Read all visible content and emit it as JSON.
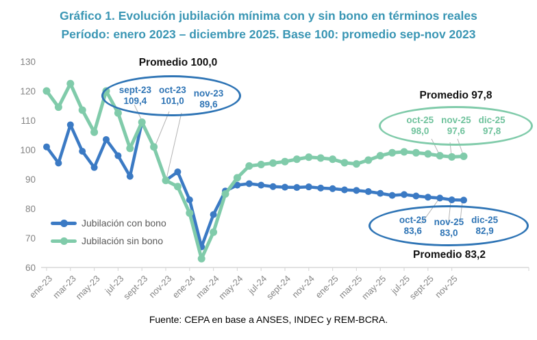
{
  "header": {
    "title_line1": "Gráfico 1. Evolución jubilación mínima con y sin bono en términos reales",
    "title_line2": "Período: enero 2023 – diciembre 2025. Base 100: promedio sep-nov 2023"
  },
  "source": "Fuente: CEPA en base a ANSES, INDEC y REM-BCRA.",
  "colors": {
    "title": "#3a96b4",
    "con_bono": "#3b7ac4",
    "sin_bono": "#80cbaa",
    "axis_text": "#848484",
    "axis_line": "#d9d9d9",
    "leader_line": "#b3b3b3",
    "annotation_blue": "#2e74b5",
    "annotation_green": "#6fc29c"
  },
  "legend": [
    {
      "label": "Jubilación con bono",
      "color": "#3b7ac4"
    },
    {
      "label": "Jubilación sin bono",
      "color": "#80cbaa"
    }
  ],
  "chart_data": {
    "type": "line",
    "x": [
      "ene-23",
      "feb-23",
      "mar-23",
      "abr-23",
      "may-23",
      "jun-23",
      "jul-23",
      "ago-23",
      "sept-23",
      "oct-23",
      "nov-23",
      "dic-23",
      "ene-24",
      "feb-24",
      "mar-24",
      "abr-24",
      "may-24",
      "jun-24",
      "jul-24",
      "ago-24",
      "sept-24",
      "oct-24",
      "nov-24",
      "dic-24",
      "ene-25",
      "feb-25",
      "mar-25",
      "abr-25",
      "may-25",
      "jun-25",
      "jul-25",
      "ago-25",
      "sept-25",
      "oct-25",
      "nov-25",
      "dic-25"
    ],
    "x_tick_labels": [
      "ene-23",
      "mar-23",
      "may-23",
      "jul-23",
      "sept-23",
      "nov-23",
      "ene-24",
      "mar-24",
      "may-24",
      "jul-24",
      "sept-24",
      "nov-24",
      "ene-25",
      "mar-25",
      "may-25",
      "jul-25",
      "sept-25",
      "nov-25"
    ],
    "series": [
      {
        "name": "Jubilación con bono",
        "color": "#3b7ac4",
        "values": [
          101.0,
          95.5,
          108.5,
          99.5,
          94.0,
          103.5,
          98.0,
          91.0,
          109.4,
          101.0,
          89.6,
          92.5,
          83.0,
          67.0,
          78.0,
          86.0,
          88.0,
          88.5,
          88.0,
          87.5,
          87.3,
          87.2,
          87.4,
          87.0,
          86.8,
          86.4,
          86.2,
          85.8,
          85.2,
          84.5,
          84.8,
          84.3,
          83.9,
          83.6,
          83.0,
          82.9
        ]
      },
      {
        "name": "Jubilación sin bono",
        "color": "#80cbaa",
        "values": [
          120.0,
          114.5,
          122.5,
          113.5,
          106.0,
          120.0,
          112.5,
          100.5,
          109.4,
          101.0,
          89.6,
          87.5,
          78.5,
          63.0,
          72.0,
          85.0,
          90.5,
          94.5,
          95.0,
          95.5,
          96.0,
          96.8,
          97.5,
          97.2,
          96.8,
          95.6,
          95.2,
          96.5,
          98.0,
          99.0,
          99.3,
          99.0,
          98.6,
          98.0,
          97.6,
          97.8
        ]
      }
    ],
    "ylim": [
      60,
      130
    ],
    "yticks": [
      60,
      70,
      80,
      90,
      100,
      110,
      120,
      130
    ],
    "grid": false,
    "legend_position": "inside-bottom-left",
    "title": "Gráfico 1. Evolución jubilación mínima con y sin bono en términos reales",
    "xlabel": "",
    "ylabel": ""
  },
  "annotations": [
    {
      "title": "Promedio 100,0",
      "items": [
        {
          "label": "sept-23",
          "value": "109,4"
        },
        {
          "label": "oct-23",
          "value": "101,0"
        },
        {
          "label": "nov-23",
          "value": "89,6"
        }
      ]
    },
    {
      "title": "Promedio 97,8",
      "items": [
        {
          "label": "oct-25",
          "value": "98,0"
        },
        {
          "label": "nov-25",
          "value": "97,6"
        },
        {
          "label": "dic-25",
          "value": "97,8"
        }
      ]
    },
    {
      "title": "Promedio 83,2",
      "items": [
        {
          "label": "oct-25",
          "value": "83,6"
        },
        {
          "label": "nov-25",
          "value": "83,0"
        },
        {
          "label": "dic-25",
          "value": "82,9"
        }
      ]
    }
  ]
}
